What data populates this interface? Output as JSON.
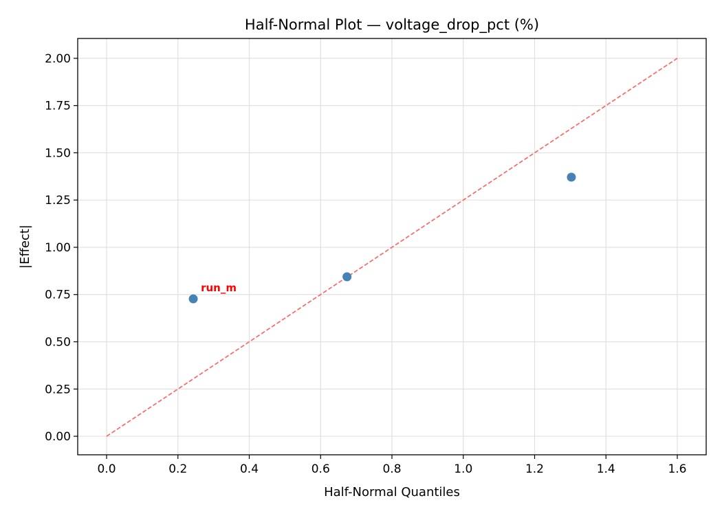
{
  "chart_data": {
    "type": "scatter",
    "title": "Half-Normal Plot — voltage_drop_pct (%)",
    "xlabel": "Half-Normal Quantiles",
    "ylabel": "|Effect|",
    "xlim": [
      -0.081,
      1.681
    ],
    "ylim": [
      -0.098,
      2.105
    ],
    "xticks": [
      "0.0",
      "0.2",
      "0.4",
      "0.6",
      "0.8",
      "1.0",
      "1.2",
      "1.4",
      "1.6"
    ],
    "yticks": [
      "0.00",
      "0.25",
      "0.50",
      "0.75",
      "1.00",
      "1.25",
      "1.50",
      "1.75",
      "2.00"
    ],
    "grid": true,
    "points": [
      {
        "x": 0.243,
        "y": 0.727,
        "label": "run_m"
      },
      {
        "x": 0.674,
        "y": 0.844,
        "label": ""
      },
      {
        "x": 1.303,
        "y": 1.371,
        "label": ""
      }
    ],
    "reference_line": {
      "x": [
        0,
        1.6
      ],
      "y": [
        0,
        2.0
      ],
      "style": "dashed"
    },
    "colors": {
      "points": "#4682b4",
      "reference_line": "#ff6666",
      "label": "#ff0000",
      "grid": "#e0e0e0"
    }
  }
}
